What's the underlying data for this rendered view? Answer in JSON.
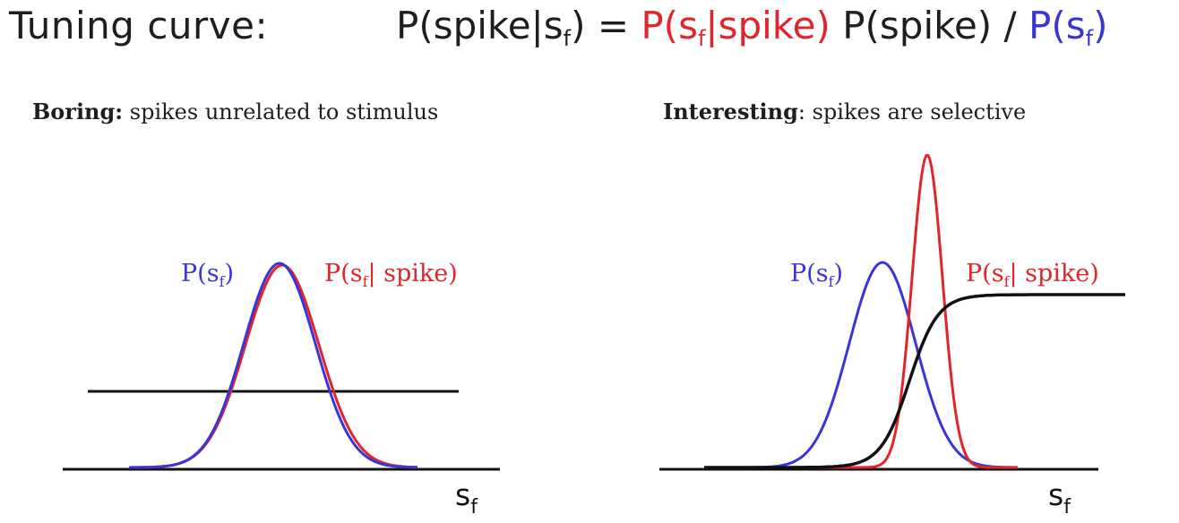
{
  "header": {
    "label": "Tuning curve:",
    "formula": {
      "lhs_prefix": "P(spike|s",
      "sub": "f",
      "lhs_suffix": ") = ",
      "term_red_prefix": "P(s",
      "term_red_suffix": "|spike)",
      "term_black": " P(spike) / ",
      "term_blue_prefix": "P(s",
      "term_blue_suffix": ")"
    }
  },
  "panels": {
    "boring": {
      "heading_bold": "Boring:",
      "heading_rest": " spikes unrelated to stimulus",
      "prior_label": "P(s",
      "prior_label_sub": "f",
      "prior_label_end": ")",
      "posterior_label": "P(s",
      "posterior_label_sub": "f",
      "posterior_label_end": "| spike)",
      "axis_label": "s",
      "axis_label_sub": "f"
    },
    "interesting": {
      "heading_bold": "Interesting",
      "heading_rest": ": spikes are selective",
      "prior_label": "P(s",
      "prior_label_sub": "f",
      "prior_label_end": ")",
      "posterior_label": "P(s",
      "posterior_label_sub": "f",
      "posterior_label_end": "| spike)",
      "axis_label": "s",
      "axis_label_sub": "f"
    }
  },
  "colors": {
    "prior": "#3a36d6",
    "posterior": "#e0262c",
    "tuning": "#111111"
  }
}
